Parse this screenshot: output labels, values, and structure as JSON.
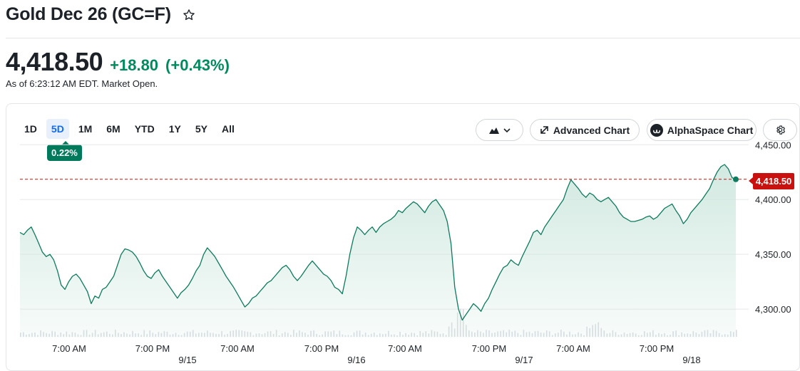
{
  "header": {
    "title": "Gold Dec 26 (GC=F)",
    "favorite_icon": "star-icon"
  },
  "quote": {
    "price": "4,418.50",
    "change": "+18.80",
    "change_pct": "(+0.43%)",
    "as_of": "As of 6:23:12 AM EDT. Market Open.",
    "positive_color": "#008a5e"
  },
  "ranges": [
    "1D",
    "5D",
    "1M",
    "6M",
    "YTD",
    "1Y",
    "5Y",
    "All"
  ],
  "active_range": "5D",
  "range_change": "0.22%",
  "toolbar": {
    "chart_type_icon": "mountain-chart-icon",
    "advanced_label": "Advanced Chart",
    "advanced_icon": "expand-arrow-icon",
    "alphaspace_label": "AlphaSpace Chart",
    "alphaspace_icon": "alphaspace-logo-icon",
    "settings_icon": "gear-icon"
  },
  "current_price_label": "4,418.50",
  "colors": {
    "line": "#0d7b5d",
    "area": "#cfe8df",
    "reference_line": "#c9120f",
    "volume": "#d7dbe0"
  },
  "chart_data": {
    "type": "area",
    "title": "",
    "xlabel": "",
    "ylabel": "",
    "ylim": [
      4275,
      4455
    ],
    "y_ticks": [
      "4,300.00",
      "4,350.00",
      "4,400.00",
      "4,450.00"
    ],
    "x_ticks": [
      {
        "time": "7:00 AM",
        "date": ""
      },
      {
        "time": "7:00 PM",
        "date": "9/15"
      },
      {
        "time": "7:00 AM",
        "date": ""
      },
      {
        "time": "7:00 PM",
        "date": "9/16"
      },
      {
        "time": "7:00 AM",
        "date": ""
      },
      {
        "time": "7:00 PM",
        "date": "9/17"
      },
      {
        "time": "7:00 AM",
        "date": ""
      },
      {
        "time": "7:00 PM",
        "date": "9/18"
      }
    ],
    "reference_value": 4418.5,
    "series": [
      {
        "values": [
          4370,
          4368,
          4372,
          4375,
          4368,
          4360,
          4352,
          4348,
          4350,
          4345,
          4335,
          4322,
          4318,
          4325,
          4330,
          4332,
          4328,
          4322,
          4316,
          4305,
          4312,
          4310,
          4318,
          4320,
          4325,
          4330,
          4340,
          4350,
          4355,
          4354,
          4352,
          4348,
          4342,
          4335,
          4330,
          4328,
          4333,
          4336,
          4330,
          4325,
          4320,
          4315,
          4310,
          4315,
          4318,
          4322,
          4328,
          4335,
          4340,
          4350,
          4356,
          4352,
          4348,
          4342,
          4336,
          4330,
          4325,
          4320,
          4314,
          4308,
          4302,
          4305,
          4310,
          4312,
          4316,
          4320,
          4324,
          4326,
          4330,
          4334,
          4338,
          4340,
          4336,
          4330,
          4326,
          4330,
          4335,
          4340,
          4344,
          4340,
          4336,
          4332,
          4330,
          4326,
          4320,
          4318,
          4314,
          4330,
          4350,
          4365,
          4375,
          4372,
          4368,
          4372,
          4375,
          4370,
          4375,
          4378,
          4380,
          4382,
          4385,
          4390,
          4388,
          4392,
          4395,
          4398,
          4396,
          4392,
          4388,
          4394,
          4398,
          4400,
          4395,
          4390,
          4380,
          4360,
          4320,
          4300,
          4290,
          4295,
          4300,
          4305,
          4302,
          4298,
          4305,
          4310,
          4318,
          4325,
          4332,
          4338,
          4340,
          4345,
          4342,
          4340,
          4348,
          4355,
          4362,
          4370,
          4372,
          4368,
          4375,
          4380,
          4385,
          4390,
          4395,
          4400,
          4410,
          4418,
          4414,
          4410,
          4405,
          4402,
          4406,
          4404,
          4400,
          4398,
          4400,
          4402,
          4398,
          4394,
          4388,
          4384,
          4382,
          4380,
          4380,
          4381,
          4382,
          4384,
          4385,
          4382,
          4384,
          4388,
          4392,
          4394,
          4396,
          4390,
          4385,
          4378,
          4382,
          4388,
          4392,
          4396,
          4400,
          4405,
          4410,
          4418,
          4425,
          4430,
          4432,
          4428,
          4420,
          4418.5
        ]
      }
    ]
  }
}
